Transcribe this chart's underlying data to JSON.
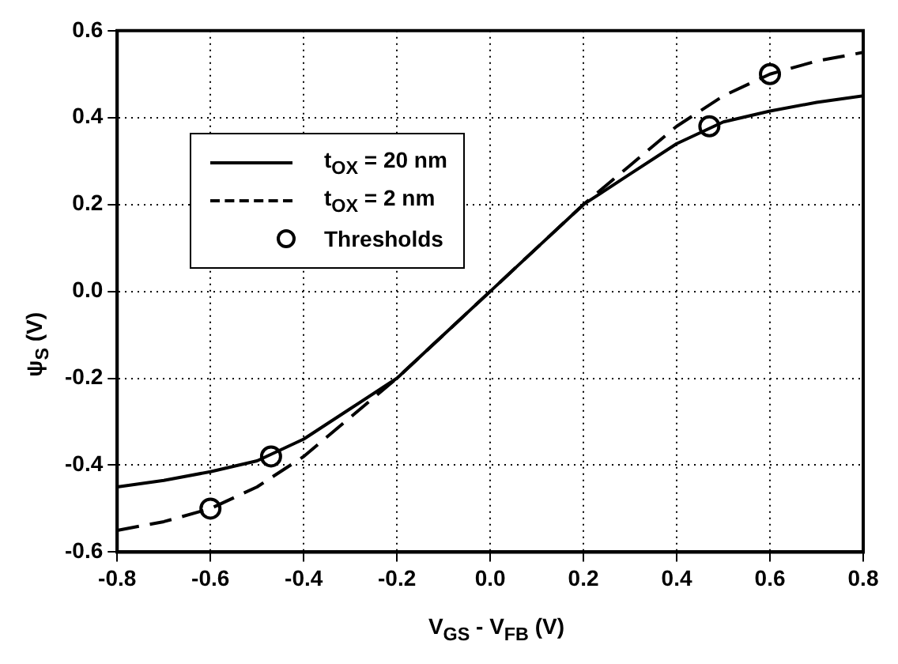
{
  "chart_data": {
    "type": "line",
    "xlabel": "V$_{GS}$ - V$_{FB}$ (V)",
    "ylabel": "ψ$_{S}$ (V)",
    "xlim": [
      -0.8,
      0.8
    ],
    "ylim": [
      -0.6,
      0.6
    ],
    "xticks": [
      -0.8,
      -0.6,
      -0.4,
      -0.2,
      {
        "value": 0,
        "label": "0.0"
      },
      0.2,
      0.4,
      0.6,
      0.8
    ],
    "yticks": [
      -0.6,
      -0.4,
      -0.2,
      {
        "value": 0,
        "label": "0.0"
      },
      0.2,
      0.4,
      0.6
    ],
    "grid": true,
    "legend": "top left",
    "series": [
      {
        "name": "t$_{OX}$ = 20 nm",
        "color": "#000000",
        "line_style": "solid",
        "marker": "none",
        "x": [
          -0.8,
          -0.7,
          -0.6,
          -0.5,
          -0.4,
          -0.3,
          -0.2,
          -0.1,
          0,
          0.1,
          0.2,
          0.3,
          0.4,
          0.5,
          0.6,
          0.7,
          0.8
        ],
        "values": [
          -0.45,
          -0.435,
          -0.415,
          -0.39,
          -0.34,
          -0.27,
          -0.2,
          -0.1,
          0,
          0.1,
          0.2,
          0.27,
          0.34,
          0.39,
          0.415,
          0.435,
          0.45
        ]
      },
      {
        "name": "t$_{OX}$ = 2 nm",
        "color": "#000000",
        "line_style": "dashed",
        "marker": "none",
        "x": [
          -0.8,
          -0.7,
          -0.6,
          -0.5,
          -0.4,
          -0.3,
          -0.2,
          -0.1,
          0,
          0.1,
          0.2,
          0.3,
          0.4,
          0.5,
          0.6,
          0.7,
          0.8
        ],
        "values": [
          -0.55,
          -0.53,
          -0.5,
          -0.45,
          -0.38,
          -0.29,
          -0.2,
          -0.1,
          0,
          0.1,
          0.2,
          0.29,
          0.38,
          0.45,
          0.5,
          0.53,
          0.55
        ]
      },
      {
        "name": "Thresholds",
        "type": "scatter",
        "color": "#000000",
        "marker": "circle",
        "x": [
          -0.6,
          -0.47,
          0.47,
          0.6
        ],
        "values": [
          -0.5,
          -0.38,
          0.38,
          0.5
        ]
      }
    ]
  }
}
